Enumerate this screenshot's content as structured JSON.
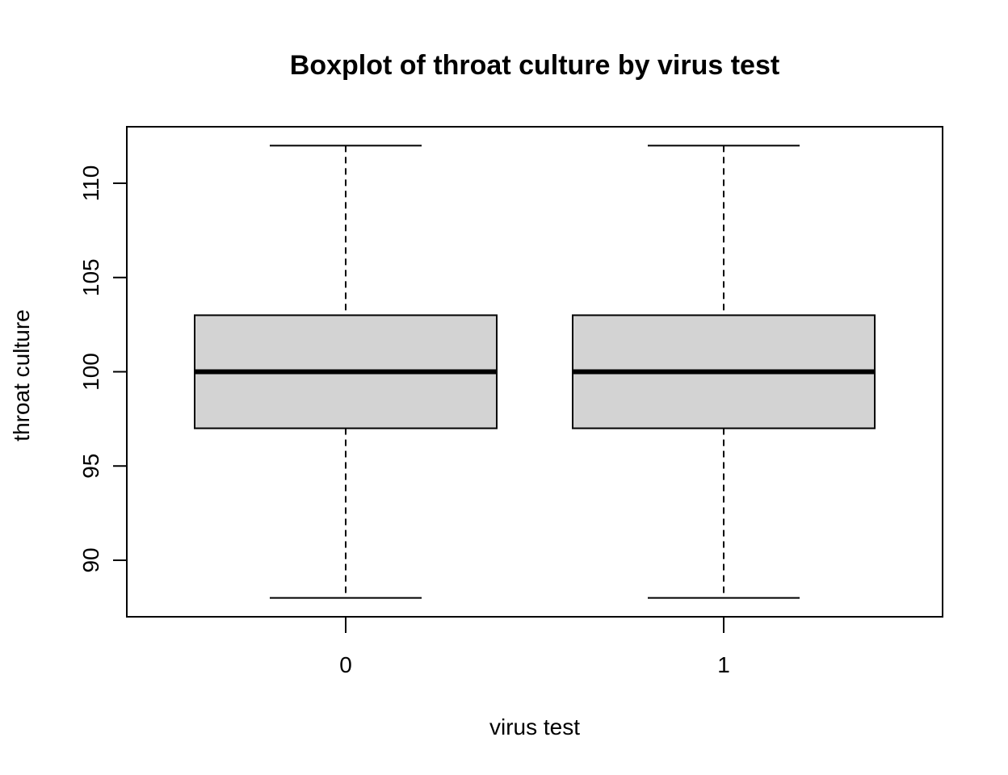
{
  "chart_data": {
    "type": "boxplot",
    "title": "Boxplot of throat culture by virus test",
    "xlabel": "virus test",
    "ylabel": "throat culture",
    "categories": [
      "0",
      "1"
    ],
    "boxes": [
      {
        "category": "0",
        "min": 88,
        "q1": 97,
        "median": 100,
        "q3": 103,
        "max": 112
      },
      {
        "category": "1",
        "min": 88,
        "q1": 97,
        "median": 100,
        "q3": 103,
        "max": 112
      }
    ],
    "y_ticks": [
      "90",
      "95",
      "100",
      "105",
      "110"
    ],
    "ylim": [
      87,
      113
    ],
    "box_fill": "#d3d3d3",
    "grid": false,
    "legend": "none"
  }
}
